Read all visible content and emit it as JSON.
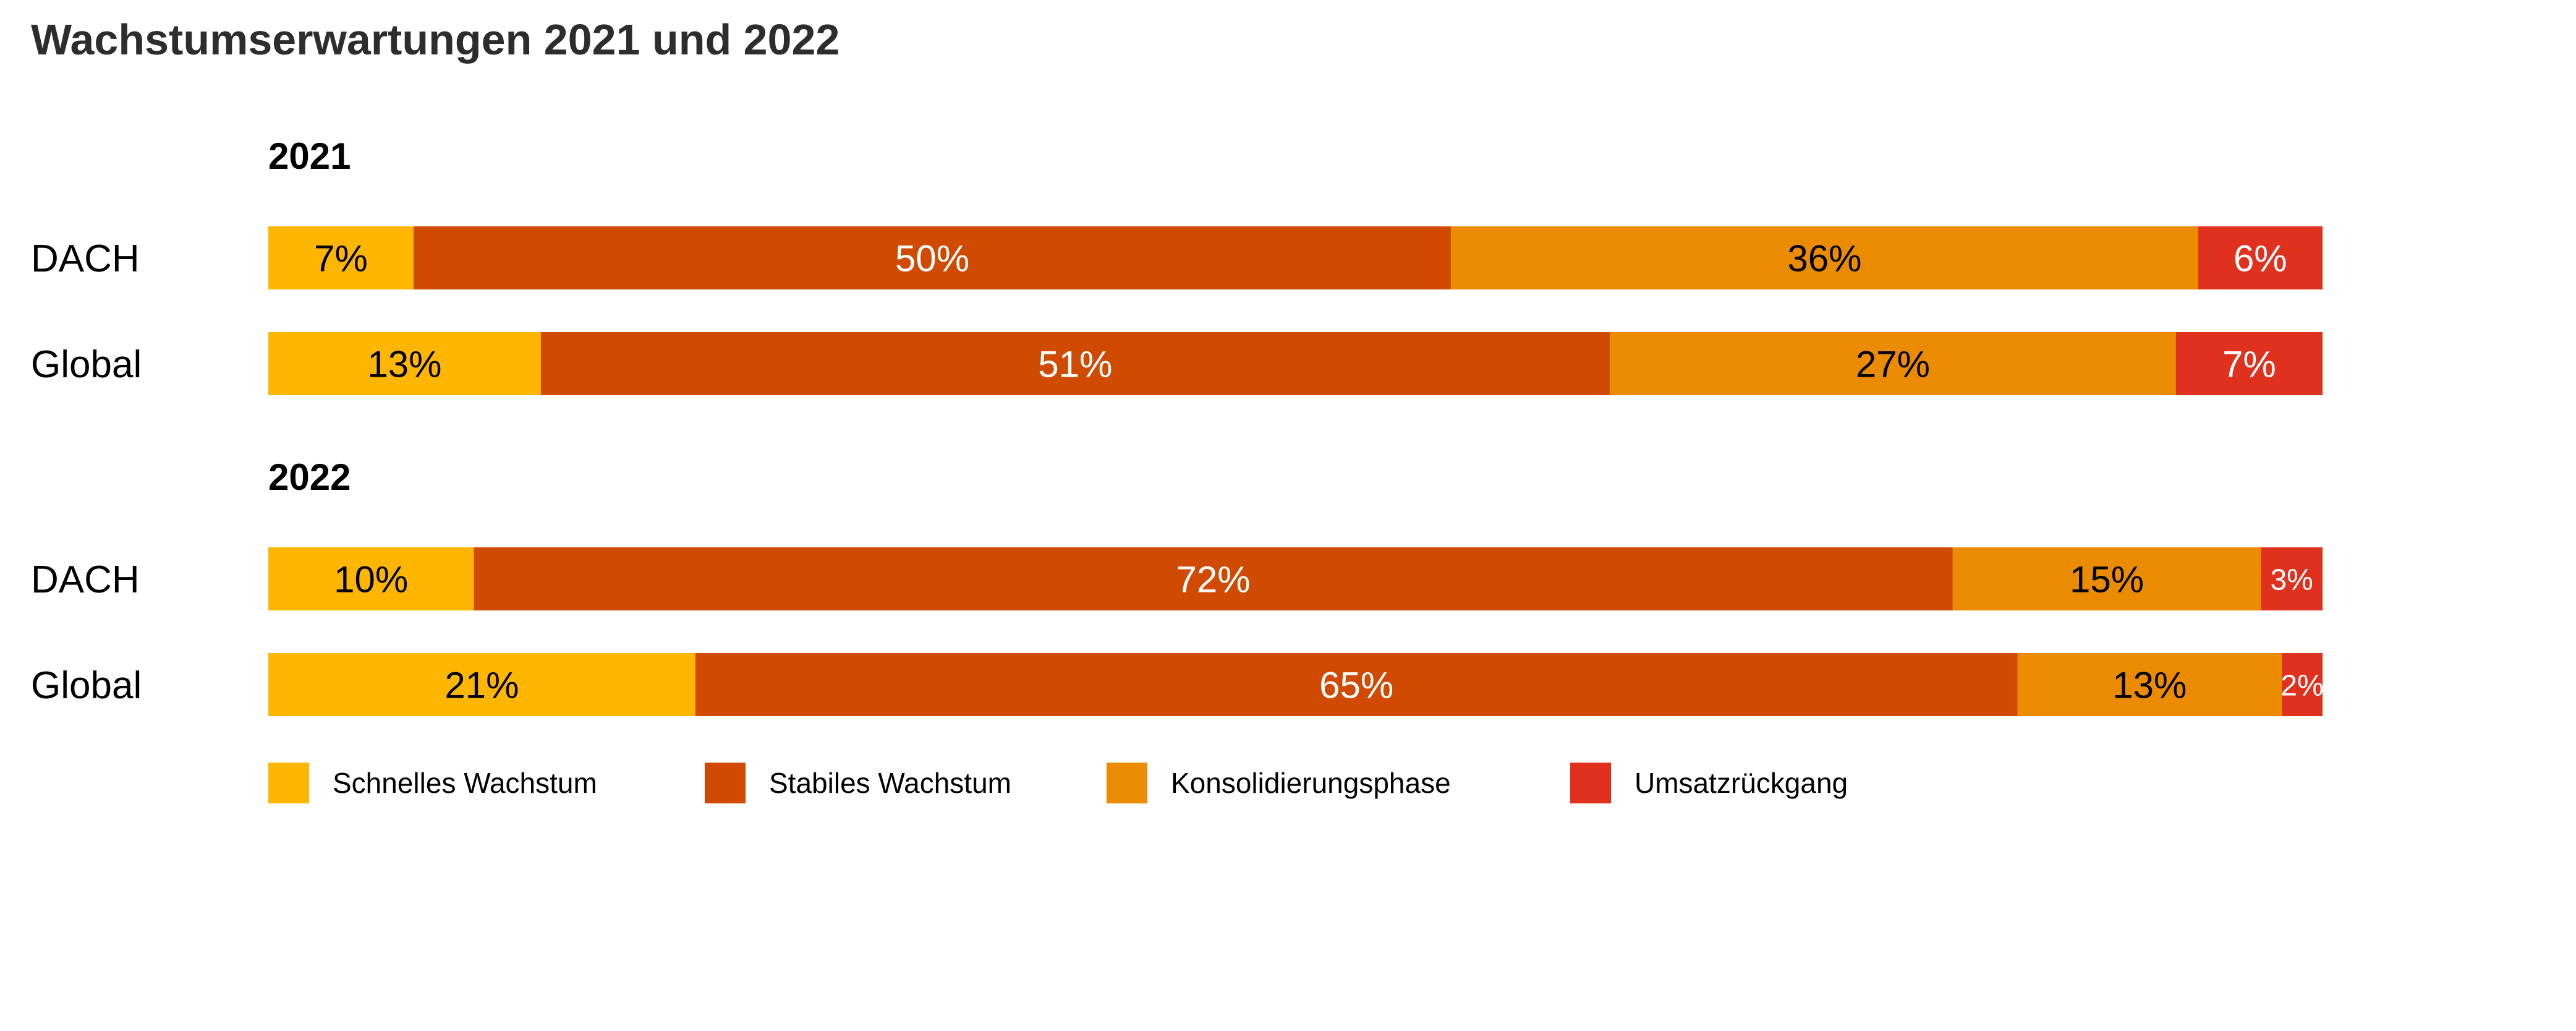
{
  "chart_data": {
    "type": "bar",
    "orientation": "horizontal",
    "stacked": true,
    "normalized_percent": true,
    "title": "Wachstumserwartungen 2021 und 2022",
    "legend_position": "bottom",
    "series": [
      {
        "name": "Schnelles Wachstum",
        "color": "#FFB600"
      },
      {
        "name": "Stabiles Wachstum",
        "color": "#D04A02"
      },
      {
        "name": "Konsolidierungsphase",
        "color": "#EB8C00"
      },
      {
        "name": "Umsatzrückgang",
        "color": "#E0301E"
      }
    ],
    "groups": [
      {
        "label": "2021",
        "rows": [
          {
            "label": "DACH",
            "values": [
              7,
              50,
              36,
              6
            ],
            "value_labels": [
              "7%",
              "50%",
              "36%",
              "6%"
            ]
          },
          {
            "label": "Global",
            "values": [
              13,
              51,
              27,
              7
            ],
            "value_labels": [
              "13%",
              "51%",
              "27%",
              "7%"
            ]
          }
        ]
      },
      {
        "label": "2022",
        "rows": [
          {
            "label": "DACH",
            "values": [
              10,
              72,
              15,
              3
            ],
            "value_labels": [
              "10%",
              "72%",
              "15%",
              "3%"
            ]
          },
          {
            "label": "Global",
            "values": [
              21,
              65,
              13,
              2
            ],
            "value_labels": [
              "21%",
              "65%",
              "13%",
              "2%"
            ]
          }
        ]
      }
    ],
    "label_colors": [
      "#000000",
      "#ffffff",
      "#000000",
      "#ffffff"
    ]
  }
}
